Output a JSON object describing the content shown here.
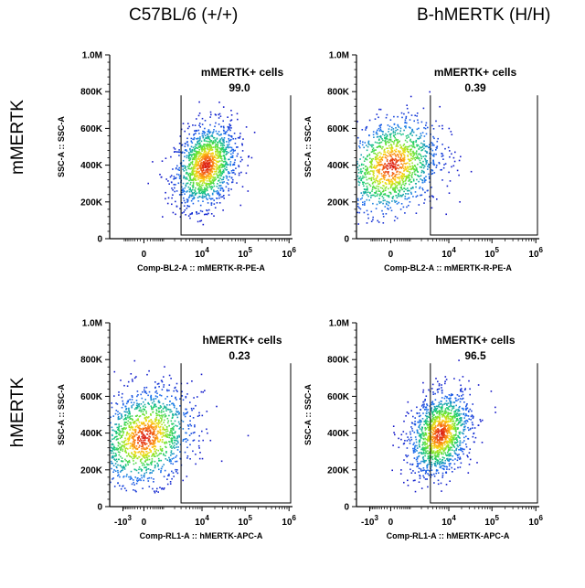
{
  "column_titles": [
    "C57BL/6 (+/+)",
    "B-hMERTK (H/H)"
  ],
  "row_titles": [
    "mMERTK",
    "hMERTK"
  ],
  "chart_data": [
    {
      "type": "scatter",
      "subtype": "flow-cytometry-density-plot",
      "column": "C57BL/6 (+/+)",
      "row": "mMERTK",
      "xlabel": "Comp-BL2-A :: mMERTK-R-PE-A",
      "ylabel": "SSC-A :: SSC-A",
      "x_scale": "biexponential",
      "x_ticks": [
        "0",
        "10^4",
        "10^5",
        "10^6"
      ],
      "y_ticks": [
        "0",
        "200K",
        "400K",
        "600K",
        "800K",
        "1.0M"
      ],
      "ylim": [
        0,
        1000000
      ],
      "gate": {
        "label": "mMERTK+ cells",
        "percent": "99.0"
      },
      "population": {
        "x_center": 12000,
        "y_center": 400000
      }
    },
    {
      "type": "scatter",
      "subtype": "flow-cytometry-density-plot",
      "column": "B-hMERTK (H/H)",
      "row": "mMERTK",
      "xlabel": "Comp-BL2-A :: mMERTK-R-PE-A",
      "ylabel": "SSC-A :: SSC-A",
      "x_scale": "biexponential",
      "x_ticks": [
        "0",
        "10^4",
        "10^5",
        "10^6"
      ],
      "y_ticks": [
        "0",
        "200K",
        "400K",
        "600K",
        "800K",
        "1.0M"
      ],
      "ylim": [
        0,
        1000000
      ],
      "gate": {
        "label": "mMERTK+ cells",
        "percent": "0.39"
      },
      "population": {
        "x_center": 0,
        "y_center": 400000
      }
    },
    {
      "type": "scatter",
      "subtype": "flow-cytometry-density-plot",
      "column": "C57BL/6 (+/+)",
      "row": "hMERTK",
      "xlabel": "Comp-RL1-A :: hMERTK-APC-A",
      "ylabel": "SSC-A :: SSC-A",
      "x_scale": "biexponential",
      "x_ticks": [
        "-10^3",
        "0",
        "10^4",
        "10^5",
        "10^6"
      ],
      "y_ticks": [
        "0",
        "200K",
        "400K",
        "600K",
        "800K",
        "1.0M"
      ],
      "ylim": [
        0,
        1000000
      ],
      "gate": {
        "label": "hMERTK+ cells",
        "percent": "0.23"
      },
      "population": {
        "x_center": 0,
        "y_center": 380000
      }
    },
    {
      "type": "scatter",
      "subtype": "flow-cytometry-density-plot",
      "column": "B-hMERTK (H/H)",
      "row": "hMERTK",
      "xlabel": "Comp-RL1-A :: hMERTK-APC-A",
      "ylabel": "SSC-A :: SSC-A",
      "x_scale": "biexponential",
      "x_ticks": [
        "-10^3",
        "0",
        "10^4",
        "10^5",
        "10^6"
      ],
      "y_ticks": [
        "0",
        "200K",
        "400K",
        "600K",
        "800K",
        "1.0M"
      ],
      "ylim": [
        0,
        1000000
      ],
      "gate": {
        "label": "hMERTK+ cells",
        "percent": "96.5"
      },
      "population": {
        "x_center": 6000,
        "y_center": 400000
      }
    }
  ]
}
